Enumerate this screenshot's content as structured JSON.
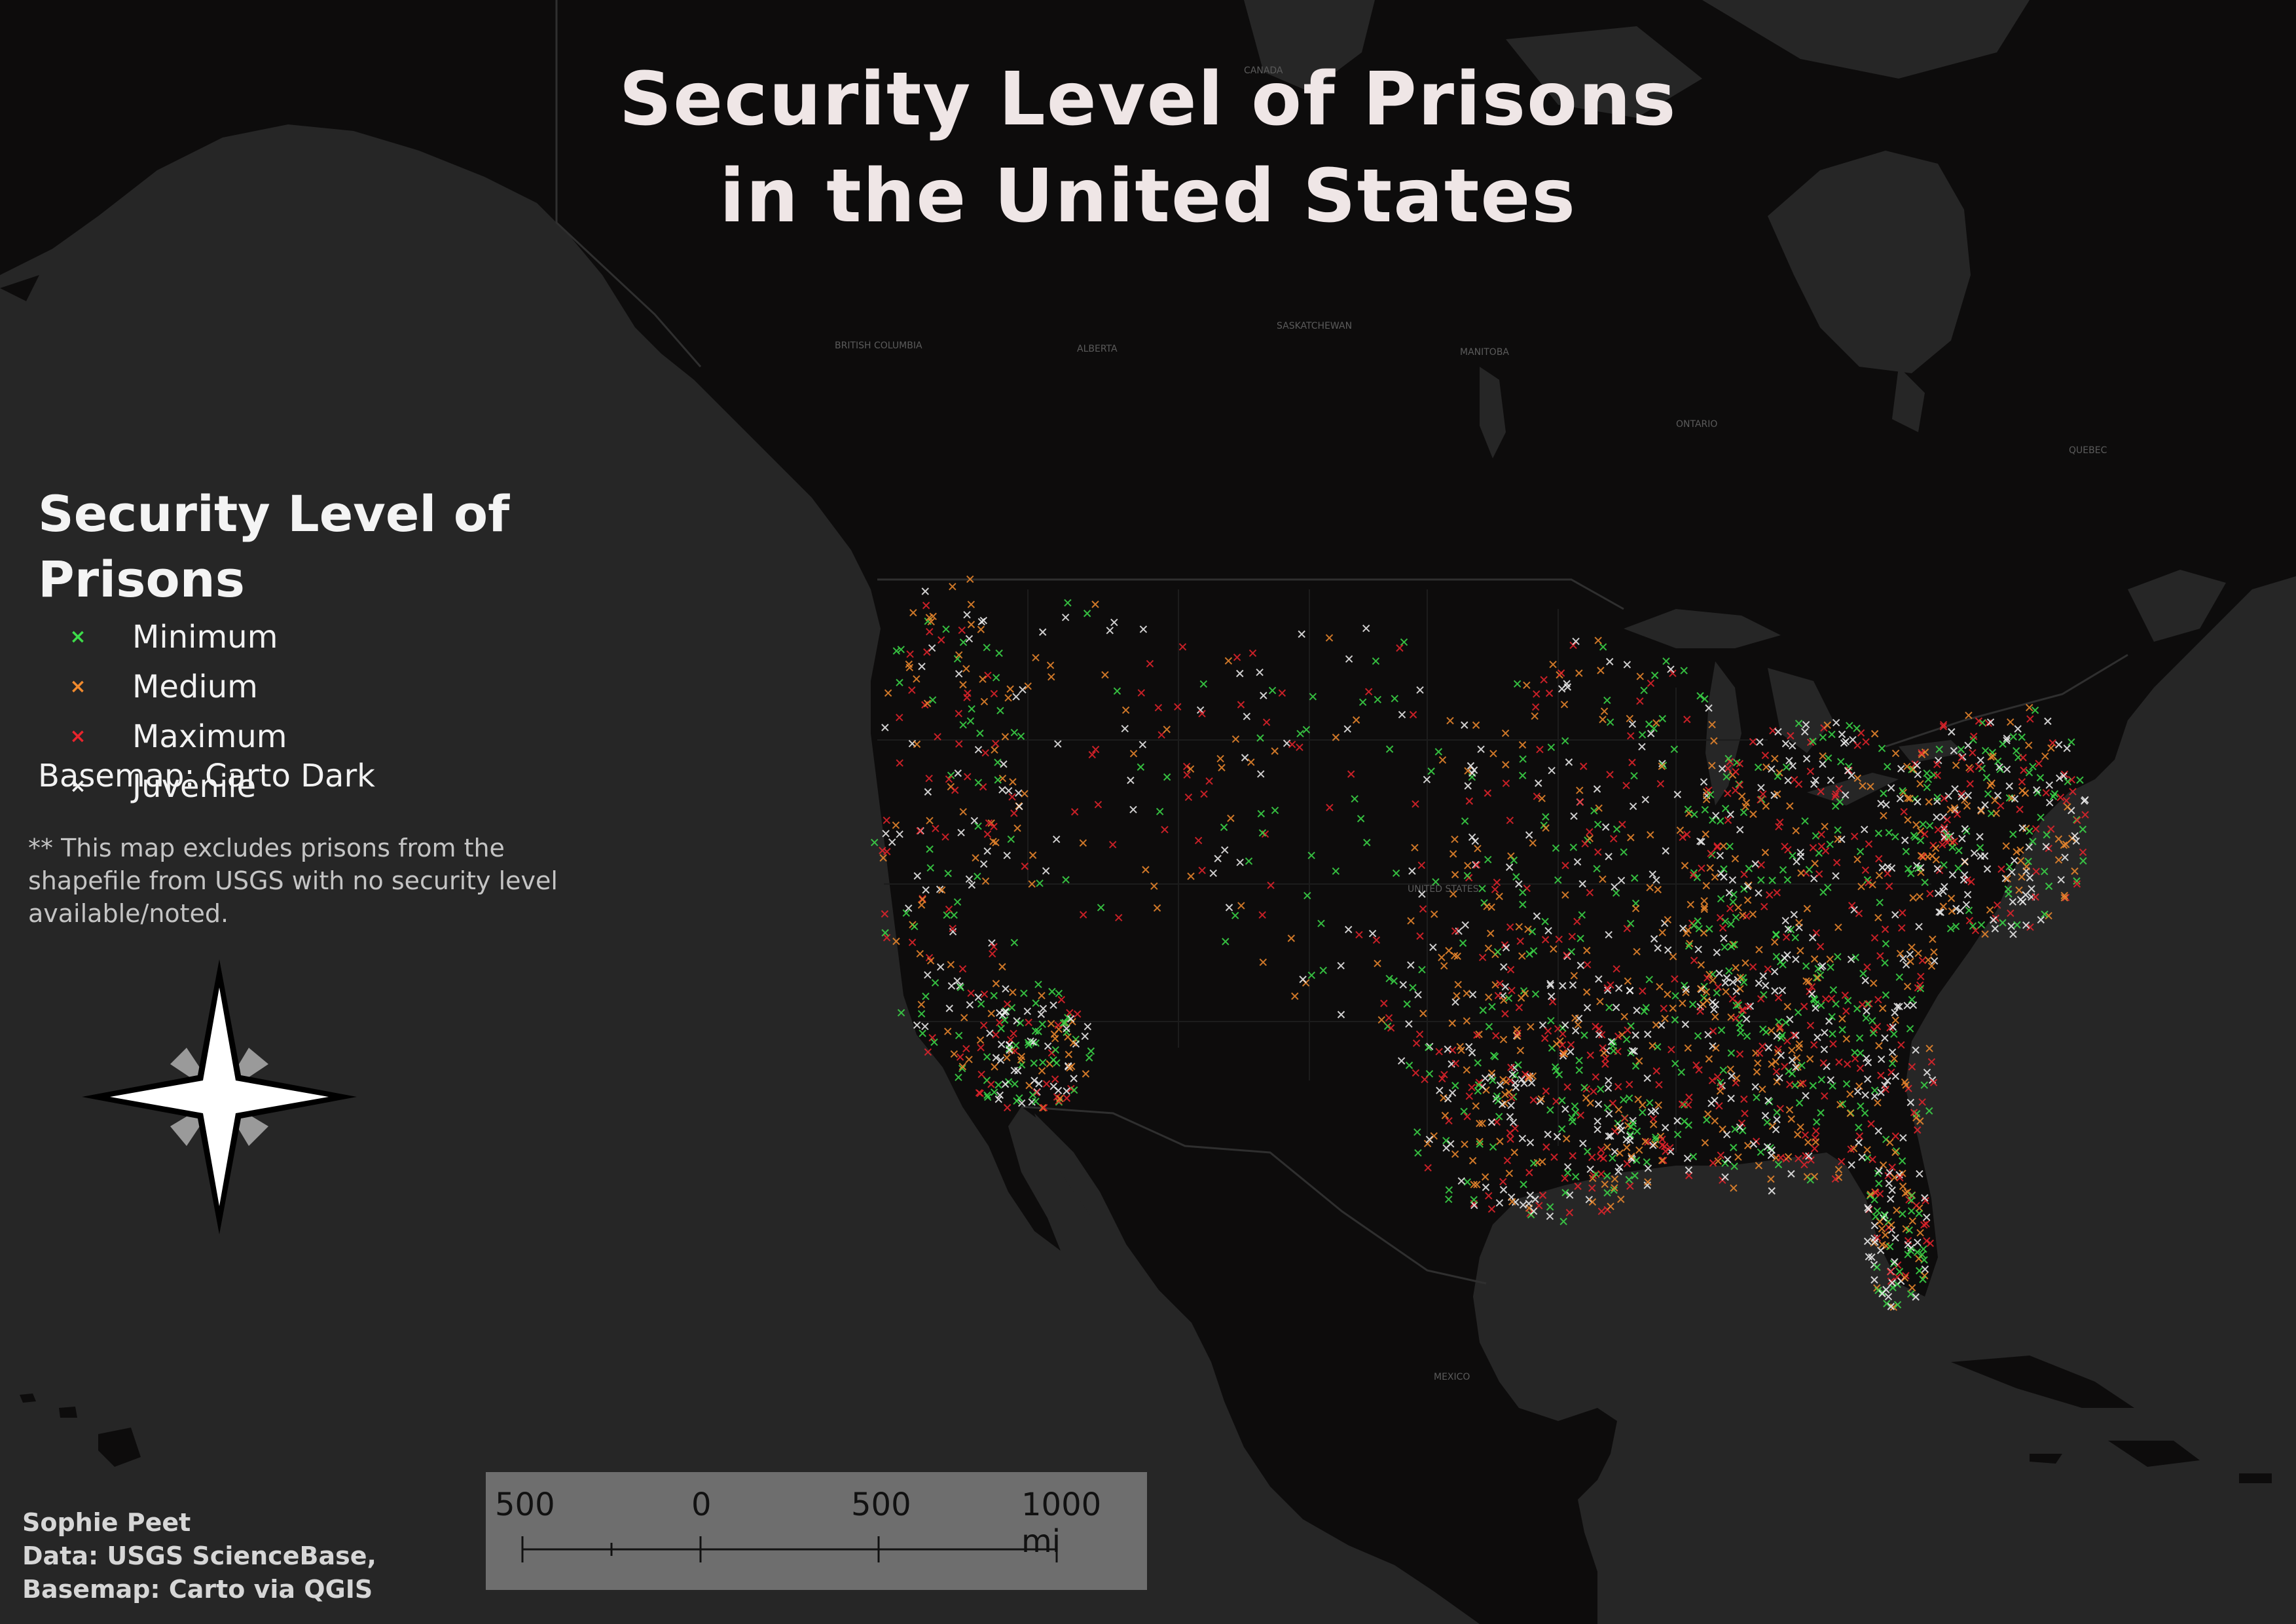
{
  "title": {
    "line1": "Security Level of Prisons",
    "line2": "in the United States"
  },
  "legend": {
    "title": "Security Level of Prisons",
    "items": [
      {
        "label": "Minimum",
        "color": "#3ddc4a"
      },
      {
        "label": "Medium",
        "color": "#f08a2e"
      },
      {
        "label": "Maximum",
        "color": "#e8242c"
      },
      {
        "label": "Juvenile",
        "color": "#f2f2f2"
      }
    ]
  },
  "basemap_note": "Basemap: Carto Dark",
  "exclusion_note": "** This map excludes prisons from the shapefile from USGS with no security level available/noted.",
  "scale_bar": {
    "labels": [
      "500",
      "0",
      "500",
      "1000 mi"
    ]
  },
  "credits": {
    "author": "Sophie Peet",
    "data": "Data: USGS ScienceBase,",
    "basemap": "Basemap: Carto via QGIS"
  },
  "map_labels": {
    "canada": "CANADA",
    "united_states": "UNITED STATES",
    "mexico": "MEXICO",
    "alberta": "ALBERTA",
    "saskatchewan": "SASKATCHEWAN",
    "manitoba": "MANITOBA",
    "ontario": "ONTARIO",
    "quebec": "QUEBEC",
    "british_columbia": "BRITISH COLUMBIA"
  },
  "colors": {
    "ocean": "#262626",
    "land": "#0d0c0c",
    "land_light": "#141313",
    "title_text": "#efe6e6"
  }
}
